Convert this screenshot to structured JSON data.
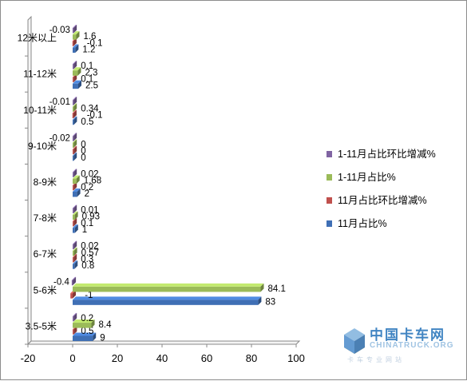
{
  "chart_data": {
    "type": "bar",
    "orientation": "horizontal",
    "style": "3d-clustered",
    "categories": [
      "3.5-5米",
      "5-6米",
      "6-7米",
      "7-8米",
      "8-9米",
      "9-10米",
      "10-11米",
      "11-12米",
      "12米以上"
    ],
    "series": [
      {
        "name": "11月占比%",
        "color": "#3f6fb5",
        "values": [
          9,
          83,
          0.8,
          1,
          2,
          0,
          0.5,
          2.5,
          1.2
        ],
        "labels": [
          "9",
          "83",
          "0.8",
          "1",
          "2",
          "0",
          "0.5",
          "2.5",
          "1.2"
        ]
      },
      {
        "name": "11月占比环比增减%",
        "color": "#c0504d",
        "values": [
          0.5,
          -1,
          0.3,
          0.1,
          0.2,
          0,
          -0.1,
          0.1,
          -0.1
        ],
        "labels": [
          "0.5",
          "-1",
          "0.3",
          "0.1",
          "0.2",
          "0",
          "-0.1",
          "0.1",
          "-0.1"
        ]
      },
      {
        "name": "1-11月占比%",
        "color": "#9bbb59",
        "values": [
          8.4,
          84.1,
          0.57,
          0.93,
          1.68,
          0,
          0.34,
          2.3,
          1.6
        ],
        "labels": [
          "8.4",
          "84.1",
          "0.57",
          "0.93",
          "1.68",
          "0",
          "0.34",
          "2.3",
          "1.6"
        ]
      },
      {
        "name": "1-11月占比环比增减%",
        "color": "#8064a2",
        "values": [
          0.2,
          -0.4,
          0.02,
          0.01,
          0.02,
          -0.02,
          -0.01,
          0.1,
          -0.03
        ],
        "labels": [
          "0.2",
          "-0.4",
          "0.02",
          "0.01",
          "0.02",
          "-0.02",
          "-0.01",
          "0.1",
          "-0.03"
        ]
      }
    ],
    "xlim": [
      -20,
      100
    ],
    "xticks": [
      -20,
      0,
      20,
      40,
      60,
      80,
      100
    ],
    "legend_position": "right",
    "legend_order": [
      "1-11月占比环比增减%",
      "1-11月占比%",
      "11月占比环比增减%",
      "11月占比%"
    ],
    "grid": false
  },
  "watermark": {
    "cn": "中国卡车网",
    "en": "CHINATRUCK.ORG",
    "sub": "卡车专业网站"
  }
}
